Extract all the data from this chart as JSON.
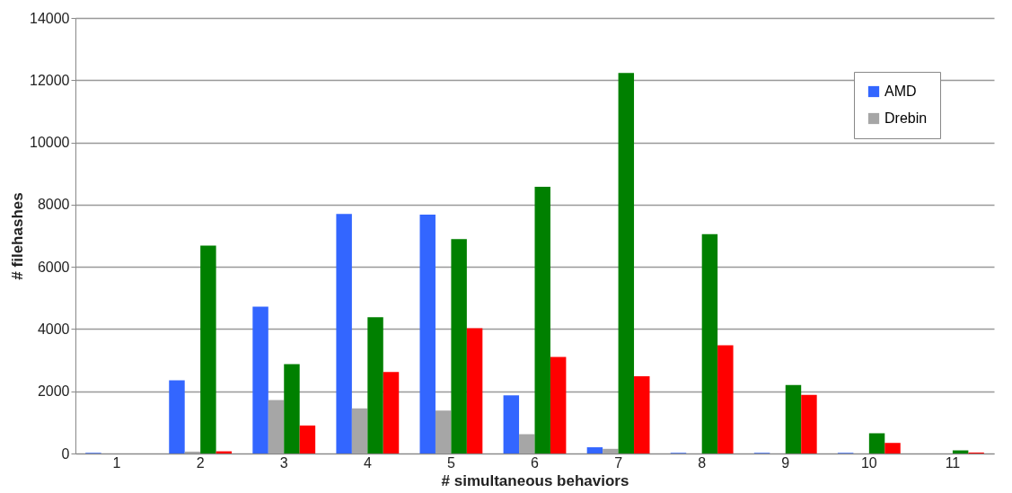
{
  "chart_data": {
    "type": "bar",
    "xlabel": "# simultaneous behaviors",
    "ylabel": "# filehashes",
    "categories": [
      "1",
      "2",
      "3",
      "4",
      "5",
      "6",
      "7",
      "8",
      "9",
      "10",
      "11"
    ],
    "series": [
      {
        "name": "AMD",
        "color": "#3366ff",
        "values": [
          20,
          2350,
          4720,
          7700,
          7680,
          1870,
          200,
          20,
          20,
          20,
          0
        ]
      },
      {
        "name": "Drebin",
        "color": "#a6a6a6",
        "values": [
          0,
          60,
          1720,
          1450,
          1380,
          620,
          150,
          0,
          0,
          0,
          0
        ]
      },
      {
        "color": "#008000",
        "values": [
          0,
          6680,
          2870,
          4380,
          6890,
          8570,
          12230,
          7050,
          2200,
          650,
          100
        ]
      },
      {
        "color": "#ff0000",
        "values": [
          0,
          70,
          900,
          2620,
          4030,
          3100,
          2480,
          3480,
          1880,
          340,
          30
        ]
      }
    ],
    "ylim": [
      0,
      14000
    ],
    "yticks": [
      0,
      2000,
      4000,
      6000,
      8000,
      10000,
      12000,
      14000
    ],
    "grid": "y",
    "legend": "top right"
  }
}
